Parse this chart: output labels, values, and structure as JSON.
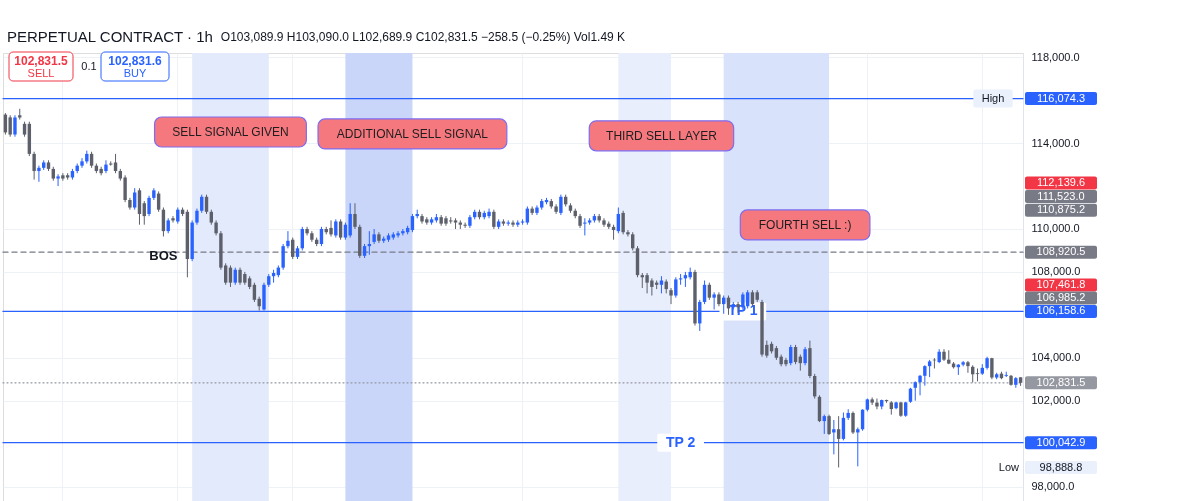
{
  "chart_data": {
    "type": "candlestick",
    "title": "PERPETUAL CONTRACT · 1h",
    "subtitle": "O103,089.9 H103,090.0 L102,689.9 C102,831.5 −258.5 (−0.25%) Vol1.49 K",
    "categories": [
      null,
      null,
      null,
      null,
      null,
      null,
      null,
      null,
      null,
      null,
      null,
      null,
      null,
      null,
      null,
      null,
      null,
      null,
      null,
      null,
      null,
      null,
      null,
      null,
      null,
      null,
      null,
      null,
      null,
      null,
      null,
      null,
      null,
      null,
      null,
      null,
      null,
      null,
      null,
      null,
      null,
      null,
      null,
      null,
      null,
      null,
      null,
      null,
      null,
      null,
      null,
      null,
      null,
      null,
      null,
      null,
      null,
      null,
      null,
      null,
      null,
      null,
      null,
      null,
      null,
      null,
      null,
      null,
      null,
      null,
      null,
      null,
      null,
      null,
      null,
      null,
      null,
      null,
      null,
      null,
      null,
      null,
      null,
      null,
      null,
      null,
      null,
      null,
      null,
      null,
      null,
      null,
      null,
      null,
      null,
      null,
      null,
      null,
      null,
      null,
      null,
      null,
      null,
      null,
      null,
      null,
      null,
      null,
      null,
      null,
      null,
      null,
      null,
      null,
      null,
      null,
      null,
      null,
      null,
      null,
      null,
      null,
      null,
      null,
      null,
      null,
      null,
      null,
      null,
      null,
      null,
      null,
      null,
      null,
      null,
      null,
      null,
      null,
      null,
      null,
      null,
      null,
      null,
      null,
      null,
      null,
      null,
      null,
      null,
      null,
      null,
      null,
      null,
      null,
      null,
      null,
      null,
      null,
      null,
      null,
      null,
      null,
      null,
      null,
      null,
      null,
      null,
      null,
      null,
      null,
      null,
      null,
      null,
      null,
      null,
      null,
      null,
      null,
      null,
      null,
      null,
      null,
      null,
      null,
      null,
      null,
      null,
      null,
      null,
      null,
      null,
      null,
      null,
      null,
      null,
      null,
      null,
      null,
      null,
      null,
      null,
      null,
      null,
      null,
      null,
      null,
      null,
      null,
      null,
      null,
      null,
      null,
      null
    ],
    "ohlc": [
      [
        115330,
        115400,
        114400,
        114500
      ],
      [
        115200,
        115300,
        114300,
        114400
      ],
      [
        114400,
        115300,
        114300,
        115200
      ],
      [
        115300,
        115600,
        115100,
        115200
      ],
      [
        114900,
        115000,
        114300,
        114400
      ],
      [
        114900,
        115000,
        113400,
        113500
      ],
      [
        113500,
        113600,
        112300,
        112700
      ],
      [
        112700,
        112950,
        112200,
        112850
      ],
      [
        112850,
        113200,
        112750,
        113100
      ],
      [
        113100,
        113200,
        112700,
        112800
      ],
      [
        112800,
        112900,
        112250,
        112350
      ],
      [
        112350,
        112550,
        112000,
        112450
      ],
      [
        112500,
        112600,
        112250,
        112350
      ],
      [
        112500,
        112600,
        112300,
        112400
      ],
      [
        112400,
        112800,
        112300,
        112700
      ],
      [
        112700,
        113050,
        112600,
        112950
      ],
      [
        112950,
        113300,
        112850,
        113150
      ],
      [
        113150,
        113650,
        113050,
        113500
      ],
      [
        113500,
        113600,
        112850,
        112950
      ],
      [
        112950,
        113050,
        112600,
        112700
      ],
      [
        112800,
        112900,
        112500,
        112600
      ],
      [
        112700,
        113200,
        112600,
        113000
      ],
      [
        113050,
        113150,
        112950,
        113000
      ],
      [
        113100,
        113500,
        112600,
        112700
      ],
      [
        112700,
        112800,
        112250,
        112350
      ],
      [
        112400,
        112500,
        111250,
        111350
      ],
      [
        111350,
        111450,
        110900,
        111000
      ],
      [
        111000,
        111900,
        110900,
        111700
      ],
      [
        111800,
        111900,
        110200,
        110700
      ],
      [
        111200,
        111300,
        110200,
        110600
      ],
      [
        110700,
        111550,
        110600,
        111450
      ],
      [
        111450,
        111900,
        111350,
        111800
      ],
      [
        111650,
        111750,
        110800,
        110900
      ],
      [
        110900,
        111000,
        109650,
        109900
      ],
      [
        109900,
        110500,
        109800,
        110400
      ],
      [
        110500,
        110600,
        110300,
        110400
      ],
      [
        110350,
        111000,
        110250,
        110900
      ],
      [
        110900,
        111000,
        110600,
        110700
      ],
      [
        110800,
        110900,
        107750,
        108600
      ],
      [
        108600,
        110400,
        108500,
        110300
      ],
      [
        110300,
        110950,
        110200,
        110850
      ],
      [
        110850,
        111600,
        110750,
        111500
      ],
      [
        111500,
        111600,
        110700,
        110800
      ],
      [
        110800,
        110900,
        110200,
        110300
      ],
      [
        110300,
        110400,
        109700,
        109800
      ],
      [
        109800,
        109900,
        108100,
        108200
      ],
      [
        108300,
        108400,
        107400,
        107500
      ],
      [
        108200,
        108300,
        107300,
        107500
      ],
      [
        107500,
        108200,
        107400,
        108100
      ],
      [
        108100,
        108200,
        107400,
        107500
      ],
      [
        107900,
        108000,
        107400,
        107500
      ],
      [
        107700,
        107800,
        107200,
        107300
      ],
      [
        107400,
        107500,
        106600,
        106700
      ],
      [
        106750,
        106850,
        106200,
        106400
      ],
      [
        106250,
        107500,
        106200,
        107400
      ],
      [
        107400,
        107900,
        107300,
        107800
      ],
      [
        107800,
        108100,
        107500,
        107950
      ],
      [
        107850,
        108300,
        107750,
        108200
      ],
      [
        108200,
        109300,
        108100,
        109200
      ],
      [
        109200,
        109900,
        109100,
        109450
      ],
      [
        109500,
        109600,
        108600,
        108700
      ],
      [
        108700,
        109200,
        108600,
        109100
      ],
      [
        109100,
        110100,
        109000,
        110000
      ],
      [
        110000,
        110100,
        109700,
        109800
      ],
      [
        109800,
        109900,
        109400,
        109500
      ],
      [
        109500,
        109600,
        109200,
        109300
      ],
      [
        109300,
        110100,
        109200,
        110000
      ],
      [
        110000,
        110100,
        109750,
        109850
      ],
      [
        110050,
        110400,
        109650,
        109750
      ],
      [
        109700,
        110450,
        109600,
        110350
      ],
      [
        110350,
        110450,
        109500,
        109600
      ],
      [
        109600,
        110300,
        109500,
        110200
      ],
      [
        109700,
        111200,
        109600,
        110700
      ],
      [
        110700,
        111200,
        110000,
        110100
      ],
      [
        110100,
        110200,
        108650,
        108750
      ],
      [
        108750,
        109300,
        108650,
        109200
      ],
      [
        109200,
        109900,
        108800,
        109300
      ],
      [
        109400,
        110000,
        109300,
        109750
      ],
      [
        109750,
        109850,
        109350,
        109450
      ],
      [
        109450,
        109650,
        109350,
        109550
      ],
      [
        109500,
        109800,
        109400,
        109700
      ],
      [
        109600,
        109850,
        109500,
        109750
      ],
      [
        109700,
        109900,
        109600,
        109800
      ],
      [
        109800,
        110000,
        109700,
        109900
      ],
      [
        109850,
        110150,
        109750,
        110050
      ],
      [
        109950,
        110700,
        109850,
        110600
      ],
      [
        110600,
        110900,
        110500,
        110700
      ],
      [
        110600,
        110700,
        110250,
        110350
      ],
      [
        110450,
        110550,
        110200,
        110300
      ],
      [
        110300,
        110550,
        110200,
        110450
      ],
      [
        110400,
        110700,
        110300,
        110550
      ],
      [
        110550,
        110650,
        110150,
        110250
      ],
      [
        110500,
        110600,
        110150,
        110250
      ],
      [
        110400,
        110550,
        110250,
        110350
      ],
      [
        110400,
        110500,
        110000,
        110300
      ],
      [
        110300,
        110400,
        110000,
        110200
      ],
      [
        110200,
        110300,
        110050,
        110150
      ],
      [
        110150,
        110650,
        110050,
        110550
      ],
      [
        110550,
        110900,
        110450,
        110800
      ],
      [
        110800,
        110900,
        110450,
        110550
      ],
      [
        110550,
        110850,
        110450,
        110750
      ],
      [
        110600,
        110950,
        110500,
        110800
      ],
      [
        110800,
        110900,
        110000,
        110100
      ],
      [
        110100,
        110450,
        110000,
        110350
      ],
      [
        110350,
        110450,
        110150,
        110250
      ],
      [
        110250,
        110400,
        110150,
        110300
      ],
      [
        110300,
        110400,
        110100,
        110200
      ],
      [
        110200,
        110400,
        110100,
        110300
      ],
      [
        110300,
        110450,
        110200,
        110350
      ],
      [
        110300,
        111050,
        110200,
        110950
      ],
      [
        110950,
        111050,
        110650,
        110750
      ],
      [
        110750,
        111100,
        110650,
        111000
      ],
      [
        111000,
        111400,
        110900,
        111300
      ],
      [
        111250,
        111450,
        111150,
        111350
      ],
      [
        111300,
        111400,
        110950,
        111050
      ],
      [
        111050,
        111150,
        110700,
        110800
      ],
      [
        110750,
        111600,
        110650,
        111500
      ],
      [
        111500,
        111600,
        111050,
        111150
      ],
      [
        111100,
        111200,
        110750,
        110850
      ],
      [
        110850,
        110950,
        110500,
        110600
      ],
      [
        110600,
        110700,
        110050,
        110150
      ],
      [
        110250,
        110500,
        109700,
        110300
      ],
      [
        110300,
        110500,
        110200,
        110400
      ],
      [
        110400,
        110700,
        110300,
        110600
      ],
      [
        110600,
        110700,
        110300,
        110400
      ],
      [
        110400,
        110500,
        110100,
        110200
      ],
      [
        110250,
        110350,
        110000,
        110100
      ],
      [
        110100,
        110200,
        109500,
        109950
      ],
      [
        109900,
        111000,
        109800,
        110700
      ],
      [
        110750,
        110850,
        109750,
        109850
      ],
      [
        109850,
        109950,
        109650,
        109750
      ],
      [
        109750,
        109850,
        109000,
        109100
      ],
      [
        109100,
        109200,
        107750,
        107850
      ],
      [
        107850,
        107950,
        107250,
        107750
      ],
      [
        107850,
        107950,
        107000,
        107500
      ],
      [
        107600,
        107700,
        106900,
        107300
      ],
      [
        107500,
        107600,
        107200,
        107400
      ],
      [
        107400,
        107800,
        107000,
        107600
      ],
      [
        107550,
        107650,
        107000,
        107200
      ],
      [
        107150,
        107250,
        106500,
        106900
      ],
      [
        106900,
        107750,
        106800,
        107650
      ],
      [
        107650,
        107900,
        107400,
        107700
      ],
      [
        107700,
        108000,
        107300,
        107850
      ],
      [
        107750,
        108200,
        107650,
        108000
      ],
      [
        108000,
        108100,
        105500,
        105600
      ],
      [
        105600,
        106700,
        105250,
        106600
      ],
      [
        106600,
        107600,
        106500,
        107400
      ],
      [
        107400,
        107500,
        106700,
        106800
      ],
      [
        106800,
        107050,
        106250,
        106950
      ],
      [
        106950,
        107050,
        106400,
        106500
      ],
      [
        106500,
        106900,
        106050,
        106800
      ],
      [
        106800,
        106900,
        106000,
        106300
      ],
      [
        106350,
        106600,
        106250,
        106500
      ],
      [
        106500,
        106600,
        106100,
        106350
      ],
      [
        106350,
        107050,
        106250,
        106950
      ],
      [
        106400,
        107150,
        106300,
        107050
      ],
      [
        107050,
        107150,
        106400,
        106500
      ],
      [
        107050,
        107150,
        106600,
        106700
      ],
      [
        106600,
        106700,
        104050,
        104150
      ],
      [
        104600,
        104800,
        104000,
        104100
      ],
      [
        104650,
        104750,
        104200,
        104300
      ],
      [
        104450,
        104550,
        103900,
        104000
      ],
      [
        104050,
        104150,
        103600,
        103700
      ],
      [
        103900,
        104000,
        103600,
        103700
      ],
      [
        103750,
        104600,
        103650,
        104500
      ],
      [
        104500,
        104600,
        103700,
        103800
      ],
      [
        104050,
        104150,
        103400,
        103750
      ],
      [
        103750,
        104500,
        103650,
        104400
      ],
      [
        104450,
        104800,
        103050,
        103150
      ],
      [
        103150,
        103250,
        102100,
        102200
      ],
      [
        102180,
        102250,
        101000,
        101050
      ],
      [
        101050,
        101350,
        100450,
        101280
      ],
      [
        101280,
        101350,
        100400,
        100450
      ],
      [
        100520,
        101100,
        99500,
        100670
      ],
      [
        100670,
        101280,
        98888.8,
        100220
      ],
      [
        100220,
        101450,
        100150,
        101200
      ],
      [
        101200,
        101600,
        101100,
        101430
      ],
      [
        101430,
        101500,
        100450,
        100520
      ],
      [
        100520,
        100750,
        98940,
        100670
      ],
      [
        100670,
        101600,
        100600,
        101580
      ],
      [
        101580,
        102100,
        101500,
        102060
      ],
      [
        102060,
        102150,
        101800,
        101910
      ],
      [
        101910,
        102100,
        101600,
        101730
      ],
      [
        101730,
        102050,
        101600,
        102030
      ],
      [
        102030,
        102050,
        101900,
        101980
      ],
      [
        101920,
        101980,
        101350,
        101610
      ],
      [
        101650,
        101950,
        101600,
        101920
      ],
      [
        101920,
        101950,
        101250,
        101300
      ],
      [
        101300,
        101950,
        101250,
        101920
      ],
      [
        101950,
        102600,
        101900,
        102560
      ],
      [
        102600,
        102900,
        102000,
        102860
      ],
      [
        102860,
        103200,
        102250,
        103160
      ],
      [
        103160,
        103650,
        102700,
        103610
      ],
      [
        103610,
        103900,
        103100,
        103830
      ],
      [
        103910,
        103980,
        103500,
        103880
      ],
      [
        103800,
        104400,
        103750,
        104280
      ],
      [
        104280,
        104400,
        103850,
        103910
      ],
      [
        103910,
        104350,
        103700,
        103730
      ],
      [
        103730,
        103800,
        103500,
        103560
      ],
      [
        103560,
        103700,
        103200,
        103680
      ],
      [
        103680,
        103850,
        103600,
        103790
      ],
      [
        103790,
        103850,
        103300,
        103610
      ],
      [
        103580,
        103650,
        102850,
        103230
      ],
      [
        103280,
        103500,
        102900,
        103240
      ],
      [
        103260,
        103700,
        103200,
        103530
      ],
      [
        103530,
        104050,
        103450,
        103980
      ],
      [
        103980,
        104000,
        103000,
        103080
      ],
      [
        103080,
        103300,
        103000,
        103230
      ],
      [
        103260,
        103350,
        103000,
        103050
      ],
      [
        103160,
        103350,
        103100,
        103200
      ],
      [
        103160,
        103200,
        102700,
        102740
      ],
      [
        102740,
        103100,
        102600,
        103050
      ],
      [
        103089.9,
        103090.0,
        102689.9,
        102831.5
      ]
    ],
    "colors": [
      "#5d606b",
      "#5d606b",
      "#2962ff",
      "#5d606b",
      "#5d606b",
      "#5d606b",
      "#5d606b",
      "#2962ff",
      "#2962ff",
      "#5d606b",
      "#5d606b",
      "#2962ff",
      "#5d606b",
      "#5d606b",
      "#2962ff",
      "#2962ff",
      "#2962ff",
      "#2962ff",
      "#5d606b",
      "#5d606b",
      "#5d606b",
      "#2962ff",
      "#5d606b",
      "#5d606b",
      "#5d606b",
      "#5d606b",
      "#5d606b",
      "#2962ff",
      "#5d606b",
      "#5d606b",
      "#2962ff",
      "#2962ff",
      "#5d606b",
      "#5d606b",
      "#2962ff",
      "#5d606b",
      "#2962ff",
      "#5d606b",
      "#5d606b",
      "#2962ff",
      "#2962ff",
      "#2962ff",
      "#5d606b",
      "#5d606b",
      "#5d606b",
      "#5d606b",
      "#5d606b",
      "#5d606b",
      "#2962ff",
      "#5d606b",
      "#5d606b",
      "#5d606b",
      "#5d606b",
      "#5d606b",
      "#2962ff",
      "#2962ff",
      "#2962ff",
      "#2962ff",
      "#2962ff",
      "#2962ff",
      "#5d606b",
      "#2962ff",
      "#2962ff",
      "#5d606b",
      "#5d606b",
      "#5d606b",
      "#2962ff",
      "#5d606b",
      "#5d606b",
      "#2962ff",
      "#5d606b",
      "#2962ff",
      "#2962ff",
      "#5d606b",
      "#5d606b",
      "#2962ff",
      "#2962ff",
      "#2962ff",
      "#5d606b",
      "#2962ff",
      "#2962ff",
      "#2962ff",
      "#2962ff",
      "#2962ff",
      "#2962ff",
      "#2962ff",
      "#2962ff",
      "#5d606b",
      "#5d606b",
      "#2962ff",
      "#2962ff",
      "#5d606b",
      "#5d606b",
      "#5d606b",
      "#5d606b",
      "#5d606b",
      "#5d606b",
      "#2962ff",
      "#2962ff",
      "#5d606b",
      "#2962ff",
      "#2962ff",
      "#5d606b",
      "#2962ff",
      "#5d606b",
      "#2962ff",
      "#5d606b",
      "#2962ff",
      "#2962ff",
      "#2962ff",
      "#5d606b",
      "#2962ff",
      "#2962ff",
      "#2962ff",
      "#5d606b",
      "#5d606b",
      "#2962ff",
      "#5d606b",
      "#5d606b",
      "#5d606b",
      "#5d606b",
      "#2962ff",
      "#2962ff",
      "#2962ff",
      "#5d606b",
      "#5d606b",
      "#5d606b",
      "#5d606b",
      "#2962ff",
      "#5d606b",
      "#5d606b",
      "#5d606b",
      "#5d606b",
      "#5d606b",
      "#5d606b",
      "#5d606b",
      "#5d606b",
      "#2962ff",
      "#5d606b",
      "#5d606b",
      "#2962ff",
      "#2962ff",
      "#2962ff",
      "#2962ff",
      "#5d606b",
      "#2962ff",
      "#2962ff",
      "#5d606b",
      "#2962ff",
      "#5d606b",
      "#2962ff",
      "#5d606b",
      "#2962ff",
      "#5d606b",
      "#2962ff",
      "#2962ff",
      "#5d606b",
      "#5d606b",
      "#5d606b",
      "#5d606b",
      "#5d606b",
      "#5d606b",
      "#5d606b",
      "#5d606b",
      "#2962ff",
      "#5d606b",
      "#5d606b",
      "#2962ff",
      "#5d606b",
      "#5d606b",
      "#5d606b",
      "#2962ff",
      "#5d606b",
      "#2962ff",
      "#5d606b",
      "#2962ff",
      "#2962ff",
      "#5d606b",
      "#2962ff",
      "#2962ff",
      "#2962ff",
      "#5d606b",
      "#5d606b",
      "#2962ff",
      "#5d606b",
      "#5d606b",
      "#2962ff",
      "#5d606b",
      "#2962ff",
      "#2962ff",
      "#2962ff",
      "#2962ff",
      "#2962ff",
      "#2962ff",
      "#5d606b",
      "#2962ff",
      "#5d606b",
      "#5d606b",
      "#5d606b",
      "#2962ff",
      "#2962ff",
      "#5d606b",
      "#5d606b",
      "#5d606b",
      "#2962ff",
      "#2962ff",
      "#5d606b",
      "#2962ff",
      "#5d606b",
      "#2962ff",
      "#5d606b",
      "#2962ff",
      "#5d606b"
    ],
    "ylim": [
      97000,
      118200
    ],
    "yticks": [
      {
        "value": 98000,
        "label": "98,000.0"
      },
      {
        "value": 102000,
        "label": "102,000.0"
      },
      {
        "value": 104000,
        "label": "104,000.0"
      },
      {
        "value": 108000,
        "label": "108,000.0"
      },
      {
        "value": 110000,
        "label": "110,000.0"
      },
      {
        "value": 114000,
        "label": "114,000.0"
      },
      {
        "value": 118000,
        "label": "118,000.0"
      }
    ],
    "grid": true,
    "tick_labels": "y",
    "ref_lines": [
      {
        "axis": "y",
        "value": 116074.3,
        "label": "High",
        "color": "#2962ff",
        "line_style": "solid"
      },
      {
        "axis": "y",
        "value": 106158.6,
        "label": "TP 1",
        "color": "#2962ff",
        "line_style": "solid"
      },
      {
        "axis": "y",
        "value": 100042.9,
        "label": "TP 2",
        "color": "#2962ff",
        "line_style": "solid"
      },
      {
        "axis": "y",
        "value": 108920.5,
        "color": "#787b86",
        "line_style": "dashed"
      },
      {
        "axis": "y",
        "value": 102831.5,
        "color": "#9598a1",
        "line_style": "dotted"
      }
    ],
    "annotations": [
      "SELL SIGNAL GIVEN",
      "ADDITIONAL SELL SIGNAL",
      "THIRD SELL LAYER",
      "FOURTH SELL :)",
      "BOS",
      "102,831.5",
      "SELL",
      "0.1",
      "102,831.6",
      "BUY",
      "112,139.6",
      "111,523.0",
      "110,875.2",
      "107,461.8",
      "106,985.2",
      "Low",
      "98,888.8",
      "116,074.3",
      "106,158.6",
      "100,042.9",
      "108,920.5",
      "102,831.5"
    ]
  }
}
